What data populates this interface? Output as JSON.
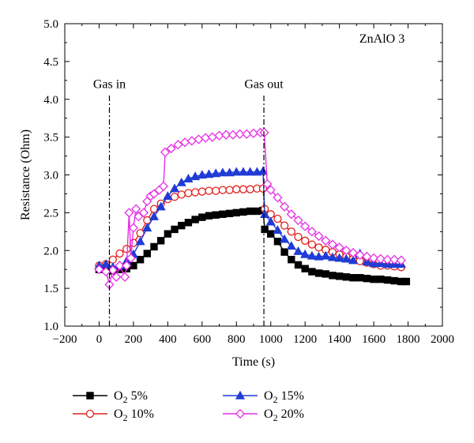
{
  "chart_data": {
    "type": "line",
    "title": "",
    "xlabel": "Time (s)",
    "ylabel": "Resistance (Ohm)",
    "xlim": [
      -200,
      2000
    ],
    "ylim": [
      1.0,
      5.0
    ],
    "xticks": [
      -200,
      0,
      200,
      400,
      600,
      800,
      1000,
      1200,
      1400,
      1600,
      1800,
      2000
    ],
    "xtick_labels": [
      "−200",
      "0",
      "200",
      "400",
      "600",
      "800",
      "1000",
      "1200",
      "1400",
      "1600",
      "1800",
      "2000"
    ],
    "yticks": [
      1.0,
      1.5,
      2.0,
      2.5,
      3.0,
      3.5,
      4.0,
      4.5,
      5.0
    ],
    "ytick_labels": [
      "1.0",
      "1.5",
      "2.0",
      "2.5",
      "3.0",
      "3.5",
      "4.0",
      "4.5",
      "5.0"
    ],
    "grid": false,
    "legend_position": "bottom",
    "annotations": [
      {
        "name": "sample-label",
        "text": "ZnAlO 3",
        "x": 1780,
        "y": 4.75
      },
      {
        "name": "gas-in-label",
        "text": "Gas in",
        "x": 60,
        "y": 4.15
      },
      {
        "name": "gas-out-label",
        "text": "Gas out",
        "x": 960,
        "y": 4.15
      }
    ],
    "vlines": [
      {
        "name": "gas-in-line",
        "x": 60,
        "y_top": 4.05
      },
      {
        "name": "gas-out-line",
        "x": 960,
        "y_top": 4.05
      }
    ],
    "series": [
      {
        "name": "O2 5%",
        "name_base": "O",
        "name_sub": "2",
        "name_suffix": " 5%",
        "color": "#000000",
        "marker": "square-filled",
        "points": [
          [
            0,
            1.75
          ],
          [
            40,
            1.75
          ],
          [
            80,
            1.73
          ],
          [
            120,
            1.75
          ],
          [
            160,
            1.76
          ],
          [
            200,
            1.8
          ],
          [
            240,
            1.88
          ],
          [
            280,
            1.96
          ],
          [
            320,
            2.05
          ],
          [
            360,
            2.13
          ],
          [
            400,
            2.22
          ],
          [
            440,
            2.28
          ],
          [
            480,
            2.33
          ],
          [
            520,
            2.37
          ],
          [
            560,
            2.41
          ],
          [
            600,
            2.44
          ],
          [
            640,
            2.46
          ],
          [
            680,
            2.47
          ],
          [
            720,
            2.48
          ],
          [
            760,
            2.49
          ],
          [
            800,
            2.5
          ],
          [
            840,
            2.51
          ],
          [
            880,
            2.52
          ],
          [
            920,
            2.52
          ],
          [
            955,
            2.53
          ],
          [
            965,
            2.28
          ],
          [
            1000,
            2.22
          ],
          [
            1040,
            2.12
          ],
          [
            1080,
            1.98
          ],
          [
            1120,
            1.88
          ],
          [
            1160,
            1.81
          ],
          [
            1200,
            1.76
          ],
          [
            1240,
            1.72
          ],
          [
            1280,
            1.7
          ],
          [
            1320,
            1.69
          ],
          [
            1360,
            1.67
          ],
          [
            1400,
            1.66
          ],
          [
            1440,
            1.65
          ],
          [
            1480,
            1.64
          ],
          [
            1520,
            1.64
          ],
          [
            1560,
            1.63
          ],
          [
            1600,
            1.62
          ],
          [
            1640,
            1.62
          ],
          [
            1680,
            1.61
          ],
          [
            1720,
            1.6
          ],
          [
            1760,
            1.59
          ],
          [
            1790,
            1.59
          ]
        ]
      },
      {
        "name": "O2 10%",
        "name_base": "O",
        "name_sub": "2",
        "name_suffix": " 10%",
        "color": "#e0201b",
        "marker": "circle-open",
        "points": [
          [
            0,
            1.8
          ],
          [
            40,
            1.82
          ],
          [
            80,
            1.88
          ],
          [
            120,
            1.96
          ],
          [
            160,
            2.02
          ],
          [
            200,
            2.1
          ],
          [
            240,
            2.23
          ],
          [
            280,
            2.4
          ],
          [
            320,
            2.55
          ],
          [
            360,
            2.62
          ],
          [
            400,
            2.68
          ],
          [
            440,
            2.71
          ],
          [
            480,
            2.74
          ],
          [
            520,
            2.76
          ],
          [
            560,
            2.77
          ],
          [
            600,
            2.78
          ],
          [
            640,
            2.79
          ],
          [
            680,
            2.79
          ],
          [
            720,
            2.8
          ],
          [
            760,
            2.8
          ],
          [
            800,
            2.81
          ],
          [
            840,
            2.81
          ],
          [
            880,
            2.81
          ],
          [
            920,
            2.82
          ],
          [
            955,
            2.82
          ],
          [
            965,
            2.55
          ],
          [
            1000,
            2.48
          ],
          [
            1040,
            2.42
          ],
          [
            1080,
            2.33
          ],
          [
            1120,
            2.25
          ],
          [
            1160,
            2.18
          ],
          [
            1200,
            2.13
          ],
          [
            1240,
            2.08
          ],
          [
            1280,
            2.04
          ],
          [
            1320,
            2.01
          ],
          [
            1360,
            1.98
          ],
          [
            1400,
            1.95
          ],
          [
            1440,
            1.92
          ],
          [
            1480,
            1.89
          ],
          [
            1520,
            1.86
          ],
          [
            1560,
            1.84
          ],
          [
            1600,
            1.82
          ],
          [
            1640,
            1.8
          ],
          [
            1680,
            1.8
          ],
          [
            1720,
            1.79
          ],
          [
            1760,
            1.78
          ]
        ]
      },
      {
        "name": "O2 15%",
        "name_base": "O",
        "name_sub": "2",
        "name_suffix": " 15%",
        "color": "#1f3cd6",
        "marker": "triangle-filled",
        "points": [
          [
            0,
            1.8
          ],
          [
            40,
            1.82
          ],
          [
            80,
            1.78
          ],
          [
            120,
            1.8
          ],
          [
            160,
            1.86
          ],
          [
            200,
            1.95
          ],
          [
            240,
            2.12
          ],
          [
            280,
            2.3
          ],
          [
            320,
            2.45
          ],
          [
            360,
            2.58
          ],
          [
            400,
            2.72
          ],
          [
            440,
            2.82
          ],
          [
            480,
            2.9
          ],
          [
            520,
            2.95
          ],
          [
            560,
            2.98
          ],
          [
            600,
            3.0
          ],
          [
            640,
            3.01
          ],
          [
            680,
            3.02
          ],
          [
            720,
            3.03
          ],
          [
            760,
            3.03
          ],
          [
            800,
            3.04
          ],
          [
            840,
            3.04
          ],
          [
            880,
            3.04
          ],
          [
            920,
            3.04
          ],
          [
            955,
            3.05
          ],
          [
            965,
            2.48
          ],
          [
            1000,
            2.38
          ],
          [
            1040,
            2.27
          ],
          [
            1080,
            2.15
          ],
          [
            1120,
            2.06
          ],
          [
            1160,
            1.99
          ],
          [
            1200,
            1.95
          ],
          [
            1240,
            1.93
          ],
          [
            1280,
            1.92
          ],
          [
            1320,
            1.93
          ],
          [
            1360,
            1.91
          ],
          [
            1400,
            1.9
          ],
          [
            1440,
            1.89
          ],
          [
            1480,
            1.87
          ],
          [
            1520,
            1.96
          ],
          [
            1560,
            1.85
          ],
          [
            1600,
            1.83
          ],
          [
            1640,
            1.83
          ],
          [
            1680,
            1.82
          ],
          [
            1720,
            1.82
          ],
          [
            1760,
            1.82
          ]
        ]
      },
      {
        "name": "O2 20%",
        "name_base": "O",
        "name_sub": "2",
        "name_suffix": " 20%",
        "color": "#e62ee6",
        "marker": "diamond-open",
        "points": [
          [
            0,
            1.75
          ],
          [
            40,
            1.72
          ],
          [
            60,
            1.55
          ],
          [
            80,
            1.74
          ],
          [
            100,
            1.65
          ],
          [
            120,
            1.8
          ],
          [
            150,
            1.65
          ],
          [
            160,
            1.8
          ],
          [
            175,
            2.5
          ],
          [
            185,
            1.9
          ],
          [
            200,
            2.3
          ],
          [
            215,
            2.55
          ],
          [
            230,
            2.45
          ],
          [
            260,
            2.5
          ],
          [
            280,
            2.65
          ],
          [
            300,
            2.72
          ],
          [
            320,
            2.75
          ],
          [
            350,
            2.8
          ],
          [
            375,
            2.85
          ],
          [
            385,
            3.3
          ],
          [
            420,
            3.35
          ],
          [
            460,
            3.4
          ],
          [
            500,
            3.43
          ],
          [
            540,
            3.45
          ],
          [
            580,
            3.47
          ],
          [
            620,
            3.49
          ],
          [
            660,
            3.5
          ],
          [
            700,
            3.52
          ],
          [
            740,
            3.53
          ],
          [
            780,
            3.53
          ],
          [
            820,
            3.54
          ],
          [
            860,
            3.54
          ],
          [
            900,
            3.55
          ],
          [
            940,
            3.56
          ],
          [
            962,
            3.56
          ],
          [
            980,
            2.88
          ],
          [
            1000,
            2.8
          ],
          [
            1040,
            2.7
          ],
          [
            1080,
            2.58
          ],
          [
            1120,
            2.48
          ],
          [
            1160,
            2.4
          ],
          [
            1200,
            2.32
          ],
          [
            1240,
            2.25
          ],
          [
            1280,
            2.19
          ],
          [
            1320,
            2.13
          ],
          [
            1360,
            2.08
          ],
          [
            1400,
            2.04
          ],
          [
            1440,
            2.0
          ],
          [
            1480,
            1.97
          ],
          [
            1520,
            1.94
          ],
          [
            1560,
            1.92
          ],
          [
            1600,
            1.9
          ],
          [
            1640,
            1.89
          ],
          [
            1680,
            1.88
          ],
          [
            1720,
            1.88
          ],
          [
            1760,
            1.87
          ]
        ]
      }
    ]
  }
}
